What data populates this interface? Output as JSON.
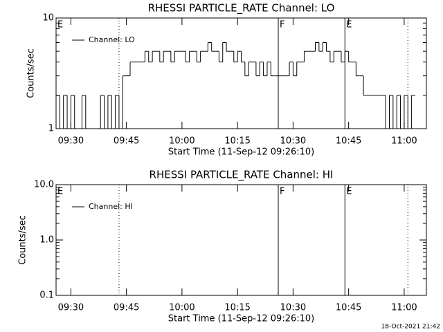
{
  "chart_data": [
    {
      "type": "line",
      "title": "RHESSI PARTICLE_RATE Channel: LO",
      "ylabel": "Counts/sec",
      "xlabel": "Start Time (11-Sep-12 09:26:10)",
      "log_y": true,
      "ylim": [
        1,
        10
      ],
      "yticks": [
        1,
        10
      ],
      "xlim": [
        "09:26",
        "11:06"
      ],
      "xticks": [
        "09:30",
        "09:45",
        "10:00",
        "10:15",
        "10:30",
        "10:45",
        "11:00"
      ],
      "legend": "upper left",
      "series": [
        {
          "name": "Channel: LO",
          "color": "#000000",
          "x": [
            "09:26",
            "09:27",
            "09:28",
            "09:29",
            "09:30",
            "09:31",
            "09:32",
            "09:33",
            "09:34",
            "09:35",
            "09:36",
            "09:37",
            "09:38",
            "09:39",
            "09:40",
            "09:41",
            "09:42",
            "09:43",
            "09:44",
            "09:45",
            "09:46",
            "09:47",
            "09:48",
            "09:49",
            "09:50",
            "09:51",
            "09:52",
            "09:53",
            "09:54",
            "09:55",
            "09:56",
            "09:57",
            "09:58",
            "09:59",
            "10:00",
            "10:01",
            "10:02",
            "10:03",
            "10:04",
            "10:05",
            "10:06",
            "10:07",
            "10:08",
            "10:09",
            "10:10",
            "10:11",
            "10:12",
            "10:13",
            "10:14",
            "10:15",
            "10:16",
            "10:17",
            "10:18",
            "10:19",
            "10:20",
            "10:21",
            "10:22",
            "10:23",
            "10:24",
            "10:25",
            "10:26",
            "10:27",
            "10:28",
            "10:29",
            "10:30",
            "10:31",
            "10:32",
            "10:33",
            "10:34",
            "10:35",
            "10:36",
            "10:37",
            "10:38",
            "10:39",
            "10:40",
            "10:41",
            "10:42",
            "10:43",
            "10:44",
            "10:45",
            "10:46",
            "10:47",
            "10:48",
            "10:49",
            "10:50",
            "10:51",
            "10:52",
            "10:53",
            "10:54",
            "10:55",
            "10:56",
            "10:57",
            "10:58",
            "10:59",
            "11:00",
            "11:01",
            "11:02"
          ],
          "values": [
            2,
            1,
            2,
            1,
            2,
            1,
            1,
            2,
            1,
            1,
            1,
            1,
            2,
            1,
            2,
            1,
            2,
            1,
            3,
            3,
            4,
            4,
            4,
            4,
            5,
            4,
            5,
            5,
            4,
            5,
            5,
            4,
            5,
            5,
            5,
            4,
            5,
            5,
            4,
            5,
            5,
            6,
            5,
            5,
            4,
            6,
            5,
            5,
            4,
            5,
            4,
            3,
            4,
            4,
            3,
            4,
            3,
            4,
            3,
            3,
            3,
            3,
            3,
            4,
            3,
            4,
            4,
            5,
            5,
            5,
            6,
            5,
            6,
            5,
            4,
            5,
            5,
            4,
            5,
            4,
            4,
            3,
            3,
            2,
            2,
            2,
            2,
            2,
            2,
            1,
            2,
            1,
            2,
            1,
            2,
            1,
            2
          ]
        }
      ],
      "annotations": [
        {
          "x": "09:26",
          "label": "E",
          "style": "solid"
        },
        {
          "x": "09:43",
          "style": "dotted"
        },
        {
          "x": "10:26",
          "label": "F",
          "style": "solid"
        },
        {
          "x": "10:44",
          "label": "E",
          "style": "solid"
        },
        {
          "x": "11:01",
          "style": "dotted"
        }
      ]
    },
    {
      "type": "line",
      "title": "RHESSI PARTICLE_RATE Channel: HI",
      "ylabel": "Counts/sec",
      "xlabel": "Start Time (11-Sep-12 09:26:10)",
      "log_y": true,
      "ylim": [
        0.1,
        10
      ],
      "yticks": [
        0.1,
        {
          "value": 1,
          "label": "1.0"
        },
        {
          "value": 10,
          "label": "10.0"
        }
      ],
      "xlim": [
        "09:26",
        "11:06"
      ],
      "xticks": [
        "09:30",
        "09:45",
        "10:00",
        "10:15",
        "10:30",
        "10:45",
        "11:00"
      ],
      "legend": "upper left",
      "series": [
        {
          "name": "Channel: HI",
          "color": "#000000",
          "x": [],
          "values": []
        }
      ],
      "annotations": [
        {
          "x": "09:26",
          "label": "E",
          "style": "solid"
        },
        {
          "x": "09:43",
          "style": "dotted"
        },
        {
          "x": "10:26",
          "label": "F",
          "style": "solid"
        },
        {
          "x": "10:44",
          "label": "E",
          "style": "solid"
        },
        {
          "x": "11:01",
          "style": "dotted"
        }
      ]
    }
  ],
  "footer": "18-Oct-2021 21:42"
}
